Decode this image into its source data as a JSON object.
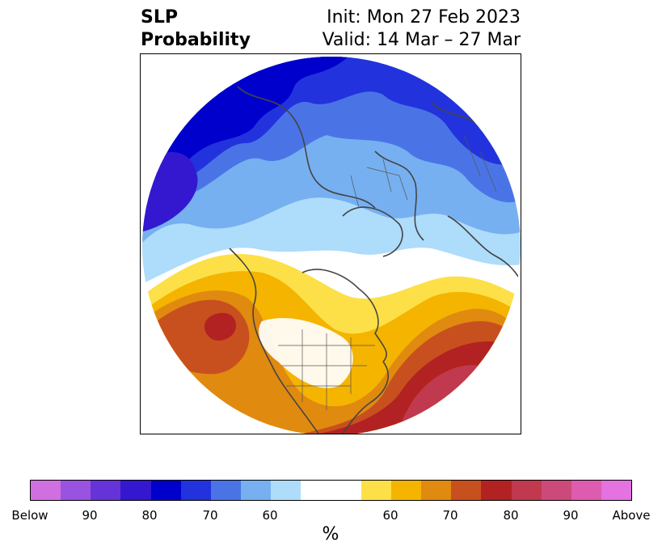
{
  "title": {
    "left_line1": "SLP",
    "left_line2": "Probability",
    "right_line1": "Init: Mon 27 Feb 2023",
    "right_line2": "Valid: 14 Mar – 27 Mar"
  },
  "map": {
    "projection": "north-polar-stereographic",
    "blue_region_description_colors": {
      "below_90_plus": "#0000cc",
      "below_80": "#2233dd",
      "below_70": "#4a74e6",
      "below_60": "#76b0f0",
      "below_50": "#aedcfb"
    },
    "warm_colors": {
      "above_50": "#fde047",
      "above_60": "#f4b400",
      "above_70": "#e08a10",
      "above_80": "#c8501e",
      "above_90": "#b22222",
      "above_95": "#c0394e"
    }
  },
  "colorbar": {
    "colors": [
      "#d070e0",
      "#9a52e0",
      "#6633d8",
      "#3318d0",
      "#0000cc",
      "#2233dd",
      "#4a74e6",
      "#76b0f0",
      "#aedcfb",
      "#ffffff",
      "#ffffff",
      "#fde047",
      "#f4b400",
      "#e08a10",
      "#c8501e",
      "#b22222",
      "#c0394e",
      "#cc4a7a",
      "#dd5cb0",
      "#e472e0"
    ],
    "tick_labels": [
      "Below",
      "90",
      "80",
      "70",
      "60",
      "60",
      "70",
      "80",
      "90",
      "Above"
    ],
    "unit_label": "%"
  }
}
